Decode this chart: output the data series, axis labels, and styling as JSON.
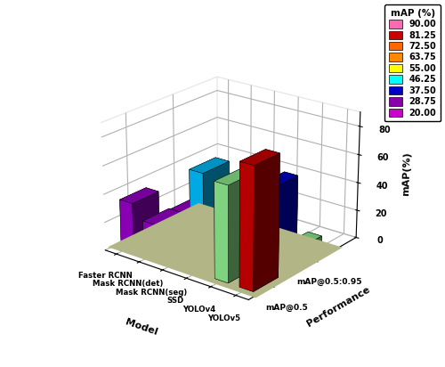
{
  "models": [
    "Faster RCNN",
    "Mask RCNN(det)",
    "Mask RCNN(seg)",
    "SSD",
    "YOLOv4",
    "YOLOv5"
  ],
  "metrics": [
    "mAP@0.5",
    "mAP@0.5:0.95"
  ],
  "model_map05": [
    34.0,
    24.0,
    13.0,
    70.0,
    67.0,
    85.0
  ],
  "model_map0595": [
    10.0,
    5.0,
    22.0,
    22.0,
    50.0,
    12.0
  ],
  "colors_map05": [
    "#9900CC",
    "#9900CC",
    "#FFB6C1",
    "#00BFFF",
    "#90EE90",
    "#CC0000"
  ],
  "colors_map0595": [
    "#9900CC",
    "#9900CC",
    "#9900CC",
    "#00BFFF",
    "#0000CC",
    "#90EE90"
  ],
  "ylabel": "mAP(%)",
  "xlabel": "Model",
  "perf_label": "Performance",
  "floor_color": "#E8EDB0",
  "legend_title": "mAP (%)",
  "legend_values": [
    90.0,
    81.25,
    72.5,
    63.75,
    55.0,
    46.25,
    37.5,
    28.75,
    20.0
  ],
  "legend_colors": [
    "#FF69B4",
    "#CC0000",
    "#FF6600",
    "#FF8800",
    "#FFFF00",
    "#00FFFF",
    "#0000CC",
    "#8800AA",
    "#CC00CC"
  ],
  "bar_width": 0.55,
  "bar_depth": 0.55,
  "elev": 22,
  "azim": -52
}
